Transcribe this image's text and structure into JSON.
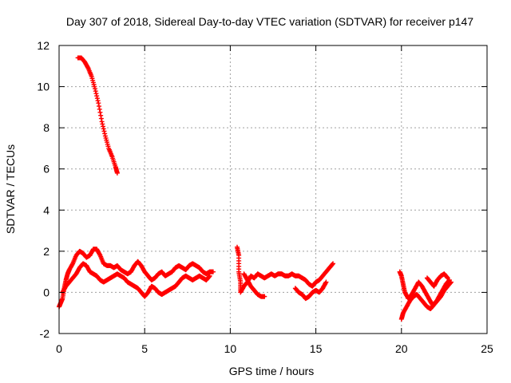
{
  "chart_data": {
    "type": "scatter",
    "title": "Day 307 of 2018, Sidereal Day-to-day VTEC variation (SDTVAR) for receiver p147",
    "xlabel": "GPS time / hours",
    "ylabel": "SDTVAR / TECUs",
    "xlim": [
      0,
      25
    ],
    "ylim": [
      -2,
      12
    ],
    "xticks": [
      0,
      5,
      10,
      15,
      20,
      25
    ],
    "yticks": [
      -2,
      0,
      2,
      4,
      6,
      8,
      10,
      12
    ],
    "grid": true,
    "marker": "+",
    "series": [
      {
        "name": "SDTVAR",
        "color": "#ff0000",
        "segments": [
          [
            [
              1.1,
              11.4
            ],
            [
              1.3,
              11.4
            ],
            [
              1.5,
              11.2
            ],
            [
              1.7,
              10.9
            ],
            [
              1.9,
              10.5
            ],
            [
              2.1,
              9.9
            ],
            [
              2.3,
              9.2
            ],
            [
              2.5,
              8.3
            ],
            [
              2.7,
              7.6
            ],
            [
              2.9,
              7.0
            ],
            [
              3.1,
              6.6
            ],
            [
              3.3,
              6.1
            ],
            [
              3.4,
              5.8
            ]
          ],
          [
            [
              0.0,
              -0.7
            ],
            [
              0.1,
              -0.5
            ],
            [
              0.2,
              -0.3
            ],
            [
              0.3,
              0.2
            ],
            [
              0.4,
              0.6
            ],
            [
              0.5,
              0.9
            ],
            [
              0.6,
              1.1
            ],
            [
              0.8,
              1.4
            ],
            [
              1.0,
              1.8
            ],
            [
              1.2,
              2.0
            ],
            [
              1.4,
              1.9
            ],
            [
              1.6,
              1.7
            ],
            [
              1.8,
              1.8
            ],
            [
              2.0,
              2.1
            ],
            [
              2.2,
              2.1
            ],
            [
              2.4,
              1.8
            ],
            [
              2.6,
              1.4
            ],
            [
              2.8,
              1.3
            ],
            [
              3.0,
              1.3
            ],
            [
              3.2,
              1.2
            ],
            [
              3.4,
              1.3
            ],
            [
              3.6,
              1.1
            ],
            [
              3.8,
              1.0
            ],
            [
              4.0,
              0.9
            ],
            [
              4.2,
              1.0
            ],
            [
              4.4,
              1.3
            ],
            [
              4.6,
              1.5
            ],
            [
              4.8,
              1.3
            ],
            [
              5.0,
              1.0
            ],
            [
              5.2,
              0.8
            ],
            [
              5.4,
              0.6
            ],
            [
              5.6,
              0.7
            ],
            [
              5.8,
              0.9
            ],
            [
              6.0,
              1.0
            ],
            [
              6.2,
              0.8
            ],
            [
              6.4,
              0.9
            ],
            [
              6.6,
              1.0
            ],
            [
              6.8,
              1.2
            ],
            [
              7.0,
              1.3
            ],
            [
              7.2,
              1.2
            ],
            [
              7.4,
              1.1
            ],
            [
              7.6,
              1.3
            ],
            [
              7.8,
              1.4
            ],
            [
              8.0,
              1.3
            ],
            [
              8.2,
              1.2
            ],
            [
              8.4,
              1.0
            ],
            [
              8.6,
              0.9
            ],
            [
              8.8,
              1.0
            ],
            [
              9.0,
              1.0
            ]
          ],
          [
            [
              0.2,
              0.0
            ],
            [
              0.4,
              0.3
            ],
            [
              0.6,
              0.5
            ],
            [
              0.8,
              0.7
            ],
            [
              1.0,
              0.9
            ],
            [
              1.2,
              1.2
            ],
            [
              1.4,
              1.4
            ],
            [
              1.6,
              1.3
            ],
            [
              1.8,
              1.0
            ],
            [
              2.0,
              0.9
            ],
            [
              2.2,
              0.8
            ],
            [
              2.4,
              0.6
            ],
            [
              2.6,
              0.5
            ],
            [
              2.8,
              0.6
            ],
            [
              3.0,
              0.7
            ],
            [
              3.2,
              0.8
            ],
            [
              3.4,
              0.9
            ],
            [
              3.6,
              0.8
            ],
            [
              3.8,
              0.7
            ],
            [
              4.0,
              0.5
            ],
            [
              4.2,
              0.4
            ],
            [
              4.4,
              0.3
            ],
            [
              4.6,
              0.2
            ],
            [
              4.8,
              0.0
            ],
            [
              5.0,
              -0.2
            ],
            [
              5.2,
              0.0
            ],
            [
              5.4,
              0.3
            ],
            [
              5.6,
              0.2
            ],
            [
              5.8,
              0.0
            ],
            [
              6.0,
              -0.1
            ],
            [
              6.2,
              0.0
            ],
            [
              6.4,
              0.1
            ],
            [
              6.6,
              0.2
            ],
            [
              6.8,
              0.3
            ],
            [
              7.0,
              0.5
            ],
            [
              7.2,
              0.7
            ],
            [
              7.4,
              0.8
            ],
            [
              7.6,
              0.7
            ],
            [
              7.8,
              0.6
            ],
            [
              8.0,
              0.7
            ],
            [
              8.2,
              0.8
            ],
            [
              8.4,
              0.7
            ],
            [
              8.6,
              0.6
            ],
            [
              8.8,
              0.8
            ]
          ],
          [
            [
              10.4,
              2.2
            ],
            [
              10.5,
              1.8
            ],
            [
              10.5,
              1.0
            ],
            [
              10.6,
              0.5
            ],
            [
              10.6,
              0.0
            ],
            [
              10.8,
              0.3
            ],
            [
              11.0,
              0.5
            ],
            [
              11.2,
              0.8
            ],
            [
              11.4,
              0.7
            ],
            [
              11.6,
              0.9
            ],
            [
              11.8,
              0.8
            ],
            [
              12.0,
              0.7
            ],
            [
              12.2,
              0.8
            ],
            [
              12.4,
              0.9
            ],
            [
              12.6,
              0.8
            ],
            [
              12.8,
              0.9
            ],
            [
              13.0,
              0.9
            ],
            [
              13.2,
              0.8
            ],
            [
              13.4,
              0.8
            ],
            [
              13.6,
              0.9
            ],
            [
              13.8,
              0.8
            ],
            [
              14.0,
              0.8
            ],
            [
              14.2,
              0.7
            ],
            [
              14.4,
              0.6
            ],
            [
              14.6,
              0.4
            ],
            [
              14.8,
              0.3
            ],
            [
              15.0,
              0.5
            ],
            [
              15.2,
              0.6
            ],
            [
              15.4,
              0.8
            ],
            [
              15.6,
              1.0
            ],
            [
              15.8,
              1.2
            ],
            [
              16.0,
              1.4
            ]
          ],
          [
            [
              10.8,
              0.9
            ],
            [
              11.0,
              0.6
            ],
            [
              11.2,
              0.3
            ],
            [
              11.4,
              0.1
            ],
            [
              11.6,
              -0.1
            ],
            [
              11.8,
              -0.2
            ],
            [
              12.0,
              -0.2
            ]
          ],
          [
            [
              13.8,
              0.2
            ],
            [
              14.0,
              0.0
            ],
            [
              14.2,
              -0.1
            ],
            [
              14.4,
              -0.3
            ],
            [
              14.6,
              -0.2
            ],
            [
              14.8,
              0.0
            ],
            [
              15.0,
              0.1
            ],
            [
              15.2,
              0.0
            ],
            [
              15.4,
              0.2
            ],
            [
              15.6,
              0.5
            ]
          ],
          [
            [
              19.9,
              1.0
            ],
            [
              20.0,
              0.8
            ],
            [
              20.1,
              0.4
            ],
            [
              20.2,
              0.0
            ],
            [
              20.4,
              -0.3
            ],
            [
              20.6,
              -0.1
            ],
            [
              20.8,
              0.2
            ],
            [
              21.0,
              0.5
            ],
            [
              21.2,
              0.3
            ],
            [
              21.4,
              0.0
            ],
            [
              21.6,
              -0.3
            ],
            [
              21.8,
              -0.6
            ],
            [
              22.0,
              -0.5
            ],
            [
              22.2,
              -0.2
            ],
            [
              22.4,
              0.1
            ],
            [
              22.6,
              0.4
            ],
            [
              22.8,
              0.6
            ]
          ],
          [
            [
              20.0,
              -1.3
            ],
            [
              20.1,
              -1.0
            ],
            [
              20.3,
              -0.7
            ],
            [
              20.5,
              -0.4
            ],
            [
              20.7,
              -0.2
            ],
            [
              20.9,
              -0.1
            ],
            [
              21.1,
              -0.3
            ],
            [
              21.3,
              -0.5
            ],
            [
              21.5,
              -0.7
            ],
            [
              21.7,
              -0.8
            ],
            [
              21.9,
              -0.6
            ],
            [
              22.1,
              -0.4
            ],
            [
              22.3,
              -0.2
            ],
            [
              22.5,
              0.1
            ],
            [
              22.7,
              0.3
            ],
            [
              22.9,
              0.5
            ]
          ],
          [
            [
              21.5,
              0.7
            ],
            [
              21.7,
              0.5
            ],
            [
              21.9,
              0.3
            ],
            [
              22.1,
              0.6
            ],
            [
              22.3,
              0.8
            ],
            [
              22.5,
              0.9
            ],
            [
              22.7,
              0.7
            ]
          ]
        ]
      }
    ]
  }
}
